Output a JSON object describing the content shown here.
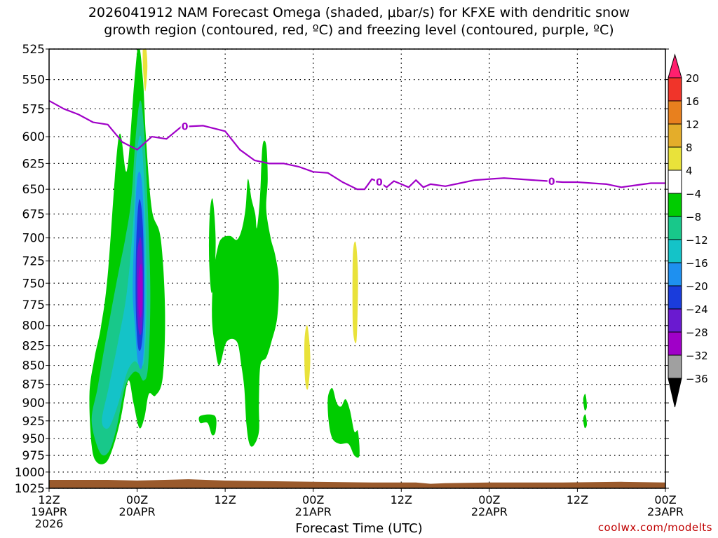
{
  "title_line1": "2026041912 NAM Forecast Omega (shaded, μbar/s) for KFXE with dendritic snow",
  "title_line2": "growth region (contoured, red, ºC) and freezing level (contoured, purple, ºC)",
  "credit": "coolwx.com/modelts",
  "chart_data": {
    "type": "contour",
    "title": "2026041912 NAM Forecast Omega (shaded, μbar/s) for KFXE with dendritic snow growth region (contoured, red, ºC) and freezing level (contoured, purple, ºC)",
    "xlabel": "Forecast Time (UTC)",
    "ylabel": "",
    "x_unit": "forecast hour",
    "xlim": [
      0,
      84
    ],
    "ylim": [
      525,
      1025
    ],
    "y_scale": "log-pressure",
    "grid": true,
    "x_ticks": [
      {
        "hour": 0,
        "line1": "12Z",
        "line2": "19APR",
        "line3": "2026"
      },
      {
        "hour": 12,
        "line1": "00Z",
        "line2": "20APR",
        "line3": ""
      },
      {
        "hour": 24,
        "line1": "12Z",
        "line2": "",
        "line3": ""
      },
      {
        "hour": 36,
        "line1": "00Z",
        "line2": "21APR",
        "line3": ""
      },
      {
        "hour": 48,
        "line1": "12Z",
        "line2": "",
        "line3": ""
      },
      {
        "hour": 60,
        "line1": "00Z",
        "line2": "22APR",
        "line3": ""
      },
      {
        "hour": 72,
        "line1": "12Z",
        "line2": "",
        "line3": ""
      },
      {
        "hour": 84,
        "line1": "00Z",
        "line2": "23APR",
        "line3": ""
      }
    ],
    "y_ticks": [
      525,
      550,
      575,
      600,
      625,
      650,
      675,
      700,
      725,
      750,
      775,
      800,
      825,
      850,
      875,
      900,
      925,
      950,
      975,
      1000,
      1025
    ],
    "colorbar": {
      "labels": [
        "20",
        "16",
        "12",
        "8",
        "4",
        "-4",
        "-8",
        "-12",
        "-16",
        "-20",
        "-24",
        "-28",
        "-32",
        "-36"
      ],
      "colors": [
        "#ff1f6e",
        "#f0342a",
        "#e8801e",
        "#e4ad2a",
        "#e9e23a",
        "#ffffff",
        "#00cc00",
        "#18c88a",
        "#14c3c8",
        "#1e90f0",
        "#1a3cdc",
        "#6a1ad0",
        "#a000c8",
        "#a0a0a0",
        "#000000"
      ]
    },
    "freezing_level": {
      "label": "0",
      "color": "#a000c8",
      "points": [
        [
          0,
          568
        ],
        [
          2,
          575
        ],
        [
          4,
          580
        ],
        [
          6,
          587
        ],
        [
          8,
          589
        ],
        [
          10,
          605
        ],
        [
          12,
          612
        ],
        [
          14,
          600
        ],
        [
          16,
          602
        ],
        [
          18,
          591
        ],
        [
          21,
          590
        ],
        [
          24,
          595
        ],
        [
          26,
          612
        ],
        [
          28,
          622
        ],
        [
          30,
          625
        ],
        [
          32,
          625
        ],
        [
          34,
          628
        ],
        [
          36,
          633
        ],
        [
          38,
          634
        ],
        [
          40,
          643
        ],
        [
          42,
          650
        ],
        [
          43,
          650
        ],
        [
          44,
          640
        ],
        [
          45,
          643
        ],
        [
          46,
          648
        ],
        [
          47,
          642
        ],
        [
          48,
          645
        ],
        [
          49,
          648
        ],
        [
          50,
          641
        ],
        [
          51,
          648
        ],
        [
          52,
          645
        ],
        [
          54,
          647
        ],
        [
          56,
          644
        ],
        [
          58,
          641
        ],
        [
          60,
          640
        ],
        [
          62,
          639
        ],
        [
          64,
          640
        ],
        [
          66,
          641
        ],
        [
          68,
          642
        ],
        [
          70,
          643
        ],
        [
          72,
          643
        ],
        [
          74,
          644
        ],
        [
          76,
          645
        ],
        [
          78,
          648
        ],
        [
          80,
          646
        ],
        [
          82,
          644
        ],
        [
          84,
          644
        ]
      ],
      "label_hours": [
        18.5,
        45,
        68.5
      ]
    },
    "omega_regions": [
      {
        "level": -8,
        "color": "#00cc00",
        "points": [
          [
            5.5,
            888
          ],
          [
            6.2,
            840
          ],
          [
            7.1,
            800
          ],
          [
            8,
            740
          ],
          [
            9.5,
            600
          ],
          [
            10.6,
            632
          ],
          [
            11.6,
            553
          ],
          [
            12.2,
            522
          ],
          [
            12.8,
            550
          ],
          [
            13.2,
            600
          ],
          [
            14,
            670
          ],
          [
            15.2,
            700
          ],
          [
            15.8,
            780
          ],
          [
            15.5,
            865
          ],
          [
            14.5,
            890
          ],
          [
            13.6,
            888
          ],
          [
            13,
            920
          ],
          [
            12.3,
            935
          ],
          [
            11.5,
            900
          ],
          [
            10.8,
            870
          ],
          [
            9.8,
            920
          ],
          [
            8.8,
            960
          ],
          [
            7.8,
            985
          ],
          [
            6.5,
            985
          ],
          [
            5.8,
            960
          ]
        ]
      },
      {
        "level": -12,
        "color": "#18c88a",
        "points": [
          [
            5.8,
            925
          ],
          [
            6.6,
            880
          ],
          [
            7.4,
            835
          ],
          [
            8.3,
            790
          ],
          [
            9.4,
            740
          ],
          [
            10.4,
            700
          ],
          [
            11.2,
            660
          ],
          [
            11.8,
            600
          ],
          [
            12.4,
            568
          ],
          [
            12.9,
            590
          ],
          [
            13.4,
            660
          ],
          [
            13.8,
            760
          ],
          [
            13.5,
            850
          ],
          [
            12.9,
            870
          ],
          [
            12.2,
            860
          ],
          [
            11.4,
            860
          ],
          [
            10.3,
            880
          ],
          [
            9.2,
            935
          ],
          [
            8.1,
            970
          ],
          [
            6.9,
            970
          ]
        ]
      },
      {
        "level": -16,
        "color": "#14c3c8",
        "points": [
          [
            7.2,
            925
          ],
          [
            8.1,
            880
          ],
          [
            9.4,
            820
          ],
          [
            10.6,
            760
          ],
          [
            11.5,
            680
          ],
          [
            11.9,
            620
          ],
          [
            12.5,
            600
          ],
          [
            13,
            650
          ],
          [
            13.3,
            760
          ],
          [
            13,
            840
          ],
          [
            12.4,
            850
          ],
          [
            11.6,
            845
          ],
          [
            10.6,
            860
          ],
          [
            9.3,
            905
          ],
          [
            8.1,
            935
          ]
        ]
      },
      {
        "level": -20,
        "color": "#1e90f0",
        "points": [
          [
            11.6,
            700
          ],
          [
            12,
            640
          ],
          [
            12.6,
            640
          ],
          [
            13,
            700
          ],
          [
            13.1,
            790
          ],
          [
            12.7,
            850
          ],
          [
            12.1,
            845
          ],
          [
            11.7,
            800
          ],
          [
            11.4,
            760
          ]
        ]
      },
      {
        "level": -24,
        "color": "#1a3cdc",
        "points": [
          [
            11.9,
            700
          ],
          [
            12.3,
            660
          ],
          [
            12.8,
            690
          ],
          [
            12.9,
            780
          ],
          [
            12.6,
            825
          ],
          [
            12.1,
            825
          ],
          [
            11.8,
            770
          ]
        ]
      },
      {
        "level": -28,
        "color": "#6a1ad0",
        "points": [
          [
            12,
            720
          ],
          [
            12.5,
            700
          ],
          [
            12.8,
            740
          ],
          [
            12.7,
            800
          ],
          [
            12.3,
            810
          ],
          [
            12,
            780
          ]
        ]
      },
      {
        "level": -32,
        "color": "#a000c8",
        "points": [
          [
            12.2,
            740
          ],
          [
            12.6,
            730
          ],
          [
            12.7,
            770
          ],
          [
            12.5,
            790
          ],
          [
            12.2,
            780
          ]
        ]
      },
      {
        "level": -8,
        "color": "#00cc00",
        "points": [
          [
            22.4,
            740
          ],
          [
            23,
            710
          ],
          [
            23.6,
            700
          ],
          [
            24.7,
            698
          ],
          [
            25.6,
            702
          ],
          [
            26.3,
            690
          ],
          [
            26.8,
            668
          ],
          [
            27.1,
            640
          ],
          [
            27.6,
            660
          ],
          [
            28.1,
            675
          ],
          [
            28.3,
            690
          ],
          [
            28.6,
            672
          ],
          [
            28.8,
            650
          ],
          [
            29.1,
            608
          ],
          [
            29.6,
            608
          ],
          [
            29.8,
            640
          ],
          [
            29.6,
            670
          ],
          [
            30.2,
            700
          ],
          [
            30.8,
            718
          ],
          [
            31.3,
            746
          ],
          [
            31.1,
            790
          ],
          [
            30.3,
            820
          ],
          [
            29.6,
            840
          ],
          [
            28.8,
            850
          ],
          [
            28.6,
            900
          ],
          [
            28.6,
            940
          ],
          [
            27.9,
            960
          ],
          [
            27.3,
            958
          ],
          [
            26.9,
            930
          ],
          [
            26.6,
            880
          ],
          [
            26.2,
            850
          ],
          [
            25.6,
            820
          ],
          [
            24.2,
            820
          ],
          [
            23.2,
            850
          ],
          [
            22.6,
            825
          ],
          [
            22.2,
            790
          ]
        ]
      },
      {
        "level": -8,
        "color": "#00cc00",
        "points": [
          [
            21.9,
            675
          ],
          [
            22.3,
            660
          ],
          [
            22.7,
            700
          ],
          [
            22.5,
            745
          ],
          [
            22.1,
            760
          ],
          [
            21.8,
            720
          ]
        ]
      },
      {
        "level": -8,
        "color": "#00cc00",
        "points": [
          [
            20.6,
            918
          ],
          [
            22.6,
            918
          ],
          [
            22.7,
            940
          ],
          [
            22.2,
            945
          ],
          [
            21.6,
            928
          ],
          [
            20.6,
            928
          ]
        ]
      },
      {
        "level": -8,
        "color": "#00cc00",
        "points": [
          [
            38,
            893
          ],
          [
            38.6,
            880
          ],
          [
            39.2,
            900
          ],
          [
            39.8,
            905
          ],
          [
            40.4,
            895
          ],
          [
            41,
            910
          ],
          [
            41.6,
            940
          ],
          [
            42.1,
            940
          ],
          [
            42.3,
            975
          ],
          [
            41.6,
            975
          ],
          [
            40.8,
            958
          ],
          [
            39.6,
            958
          ],
          [
            38.6,
            950
          ],
          [
            38.1,
            925
          ]
        ]
      },
      {
        "level": 4,
        "color": "#e9e23a",
        "points": [
          [
            12.8,
            523
          ],
          [
            13.2,
            523
          ],
          [
            13.4,
            540
          ],
          [
            13.1,
            560
          ],
          [
            12.8,
            540
          ]
        ]
      },
      {
        "level": 4,
        "color": "#e9e23a",
        "points": [
          [
            41.4,
            720
          ],
          [
            41.8,
            705
          ],
          [
            42.1,
            740
          ],
          [
            42,
            800
          ],
          [
            41.8,
            822
          ],
          [
            41.4,
            800
          ]
        ]
      },
      {
        "level": 4,
        "color": "#e9e23a",
        "points": [
          [
            34.8,
            820
          ],
          [
            35.2,
            800
          ],
          [
            35.6,
            840
          ],
          [
            35.3,
            880
          ],
          [
            34.9,
            870
          ]
        ]
      },
      {
        "level": -8,
        "color": "#00cc00",
        "points": [
          [
            72.8,
            895
          ],
          [
            73.1,
            888
          ],
          [
            73.3,
            905
          ],
          [
            73,
            910
          ]
        ]
      },
      {
        "level": -8,
        "color": "#00cc00",
        "points": [
          [
            72.8,
            922
          ],
          [
            73.1,
            916
          ],
          [
            73.3,
            930
          ],
          [
            73,
            935
          ]
        ]
      }
    ],
    "ground": {
      "color": "#9a5a2c",
      "top_points": [
        [
          0,
          1012
        ],
        [
          8,
          1012
        ],
        [
          12,
          1013
        ],
        [
          19,
          1011
        ],
        [
          24,
          1013
        ],
        [
          30,
          1014
        ],
        [
          36,
          1015
        ],
        [
          44,
          1016
        ],
        [
          50,
          1016
        ],
        [
          52,
          1018
        ],
        [
          54,
          1017
        ],
        [
          60,
          1016
        ],
        [
          70,
          1016
        ],
        [
          78,
          1015
        ],
        [
          84,
          1016
        ]
      ]
    }
  }
}
